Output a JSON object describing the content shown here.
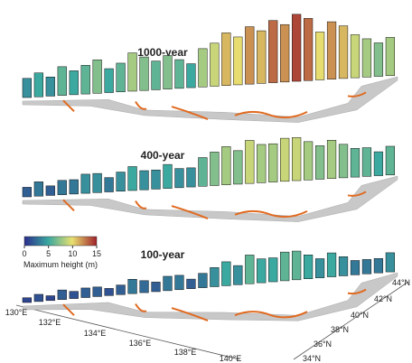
{
  "panels": [
    {
      "label": "1000-year",
      "heights": [
        4,
        5,
        4,
        6,
        5,
        6,
        7,
        5,
        6,
        8,
        7,
        6,
        7,
        6,
        5,
        8,
        9,
        11,
        10,
        12,
        11,
        13,
        12,
        14,
        13,
        10,
        12,
        11,
        9,
        8,
        7,
        8
      ]
    },
    {
      "label": "400-year",
      "heights": [
        2,
        3,
        2,
        3,
        3,
        4,
        4,
        3,
        4,
        5,
        4,
        4,
        5,
        4,
        4,
        6,
        7,
        8,
        7,
        9,
        8,
        8,
        9,
        9,
        8,
        7,
        8,
        7,
        6,
        6,
        5,
        6
      ]
    },
    {
      "label": "100-year",
      "heights": [
        1,
        1.5,
        1,
        2,
        1.5,
        2,
        2,
        1.5,
        2,
        3,
        2.5,
        2,
        3,
        3,
        2,
        3,
        4,
        5,
        4,
        6,
        5,
        5,
        6,
        6,
        5,
        4,
        5,
        4,
        3,
        3,
        3,
        4
      ]
    }
  ],
  "colorbar": {
    "lim": [
      0,
      15
    ],
    "ticks": [
      0,
      5,
      10,
      15
    ],
    "label": "Maximum height (m)"
  },
  "lon_labels": [
    "130°E",
    "132°E",
    "134°E",
    "136°E",
    "138°E",
    "140°E"
  ],
  "lat_labels": [
    "34°N",
    "36°N",
    "38°N",
    "40°N",
    "42°N",
    "44°N"
  ]
}
